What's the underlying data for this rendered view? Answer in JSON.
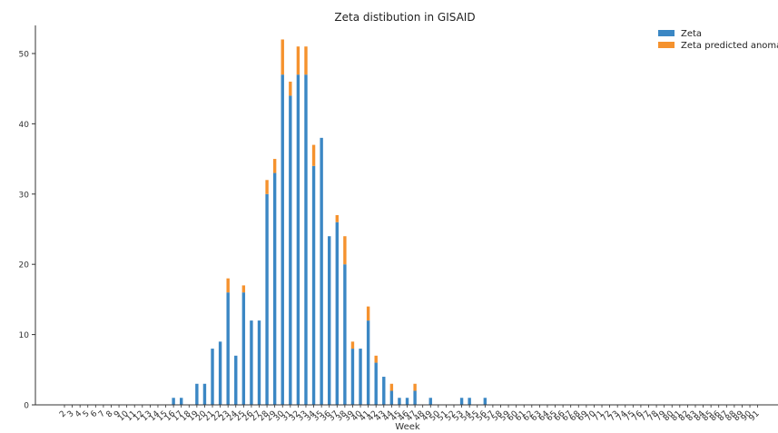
{
  "chart_data": {
    "type": "bar",
    "stacked": true,
    "title": "Zeta  distibution in GISAID",
    "xlabel": "Week",
    "ylabel": "",
    "ylim": [
      0,
      54
    ],
    "yticks": [
      0,
      10,
      20,
      30,
      40,
      50
    ],
    "grid": false,
    "legend_position": "top-right",
    "categories": [
      "2",
      "3",
      "4",
      "5",
      "6",
      "7",
      "8",
      "9",
      "10",
      "11",
      "12",
      "13",
      "14",
      "15",
      "16",
      "17",
      "18",
      "19",
      "20",
      "21",
      "22",
      "23",
      "24",
      "25",
      "26",
      "27",
      "28",
      "29",
      "30",
      "31",
      "32",
      "33",
      "34",
      "35",
      "36",
      "37",
      "38",
      "39",
      "40",
      "41",
      "42",
      "43",
      "44",
      "45",
      "46",
      "47",
      "48",
      "49",
      "50",
      "51",
      "52",
      "53",
      "54",
      "55",
      "56",
      "57",
      "58",
      "59",
      "60",
      "61",
      "62",
      "63",
      "64",
      "65",
      "66",
      "67",
      "68",
      "69",
      "70",
      "71",
      "72",
      "73",
      "74",
      "75",
      "76",
      "77",
      "78",
      "79",
      "80",
      "81",
      "82",
      "83",
      "84",
      "85",
      "86",
      "87",
      "88",
      "89",
      "90",
      "91"
    ],
    "series": [
      {
        "name": "Zeta",
        "color": "#3b87c4",
        "values": [
          0,
          0,
          0,
          0,
          0,
          0,
          0,
          0,
          0,
          0,
          0,
          0,
          0,
          0,
          1,
          1,
          0,
          3,
          3,
          8,
          9,
          16,
          7,
          16,
          12,
          12,
          30,
          33,
          47,
          44,
          47,
          47,
          34,
          38,
          24,
          26,
          20,
          8,
          8,
          12,
          6,
          4,
          2,
          1,
          1,
          2,
          0,
          1,
          0,
          0,
          0,
          1,
          1,
          0,
          1,
          0,
          0,
          0,
          0,
          0,
          0,
          0,
          0,
          0,
          0,
          0,
          0,
          0,
          0,
          0,
          0,
          0,
          0,
          0,
          0,
          0,
          0,
          0,
          0,
          0,
          0,
          0,
          0,
          0,
          0,
          0,
          0,
          0,
          0,
          0
        ]
      },
      {
        "name": "Zeta  predicted anomal",
        "color": "#f5922e",
        "values": [
          0,
          0,
          0,
          0,
          0,
          0,
          0,
          0,
          0,
          0,
          0,
          0,
          0,
          0,
          0,
          0,
          0,
          0,
          0,
          0,
          0,
          2,
          0,
          1,
          0,
          0,
          2,
          2,
          5,
          2,
          4,
          4,
          3,
          0,
          0,
          1,
          4,
          1,
          0,
          2,
          1,
          0,
          1,
          0,
          0,
          1,
          0,
          0,
          0,
          0,
          0,
          0,
          0,
          0,
          0,
          0,
          0,
          0,
          0,
          0,
          0,
          0,
          0,
          0,
          0,
          0,
          0,
          0,
          0,
          0,
          0,
          0,
          0,
          0,
          0,
          0,
          0,
          0,
          0,
          0,
          0,
          0,
          0,
          0,
          0,
          0,
          0,
          0,
          0,
          0
        ]
      }
    ]
  }
}
